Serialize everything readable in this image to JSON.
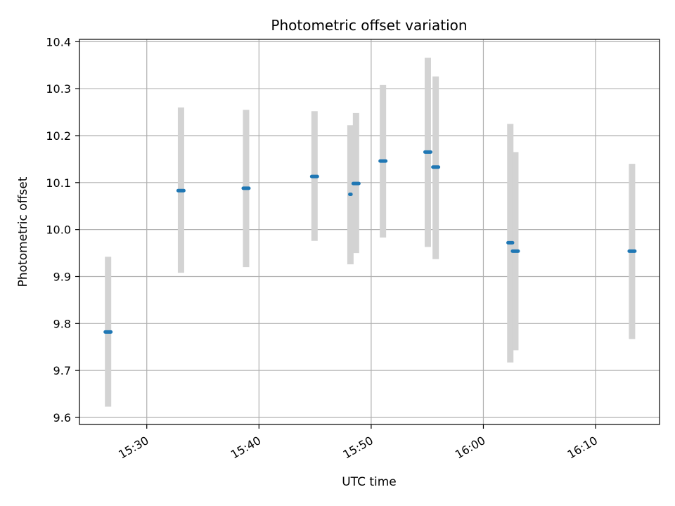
{
  "chart_data": {
    "type": "scatter",
    "title": "Photometric offset variation",
    "xlabel": "UTC time",
    "ylabel": "Photometric offset",
    "xlim": [
      "15:24.0",
      "16:15.7"
    ],
    "ylim": [
      9.585,
      10.405
    ],
    "x_ticks": [
      "15:30",
      "15:40",
      "15:50",
      "16:00",
      "16:10"
    ],
    "y_ticks": [
      9.6,
      9.7,
      9.8,
      9.9,
      10.0,
      10.1,
      10.2,
      10.3,
      10.4
    ],
    "y_tick_labels": [
      "9.6",
      "9.7",
      "9.8",
      "9.9",
      "10.0",
      "10.1",
      "10.2",
      "10.3",
      "10.4"
    ],
    "grid": true,
    "series": [
      {
        "marker_color": "#1f77b4",
        "errorbar_color": "#d3d3d3",
        "points": [
          {
            "start": "15:26.3",
            "end": "15:26.8",
            "y": 9.782,
            "yerr_low": 9.623,
            "yerr_high": 9.942
          },
          {
            "start": "15:32.8",
            "end": "15:33.3",
            "y": 10.083,
            "yerr_low": 9.908,
            "yerr_high": 10.26
          },
          {
            "start": "15:38.6",
            "end": "15:39.1",
            "y": 10.088,
            "yerr_low": 9.92,
            "yerr_high": 10.255
          },
          {
            "start": "15:44.7",
            "end": "15:45.2",
            "y": 10.113,
            "yerr_low": 9.976,
            "yerr_high": 10.252
          },
          {
            "start": "15:48.1",
            "end": "15:48.2",
            "y": 10.075,
            "yerr_low": 9.926,
            "yerr_high": 10.222
          },
          {
            "start": "15:48.4",
            "end": "15:48.9",
            "y": 10.098,
            "yerr_low": 9.95,
            "yerr_high": 10.248
          },
          {
            "start": "15:50.8",
            "end": "15:51.3",
            "y": 10.146,
            "yerr_low": 9.983,
            "yerr_high": 10.308
          },
          {
            "start": "15:54.8",
            "end": "15:55.3",
            "y": 10.165,
            "yerr_low": 9.963,
            "yerr_high": 10.366
          },
          {
            "start": "15:55.5",
            "end": "15:56.0",
            "y": 10.133,
            "yerr_low": 9.937,
            "yerr_high": 10.326
          },
          {
            "start": "16:02.2",
            "end": "16:02.6",
            "y": 9.972,
            "yerr_low": 9.717,
            "yerr_high": 10.225
          },
          {
            "start": "16:02.6",
            "end": "16:03.1",
            "y": 9.954,
            "yerr_low": 9.743,
            "yerr_high": 10.165
          },
          {
            "start": "16:13.0",
            "end": "16:13.5",
            "y": 9.954,
            "yerr_low": 9.767,
            "yerr_high": 10.14
          }
        ]
      }
    ]
  }
}
